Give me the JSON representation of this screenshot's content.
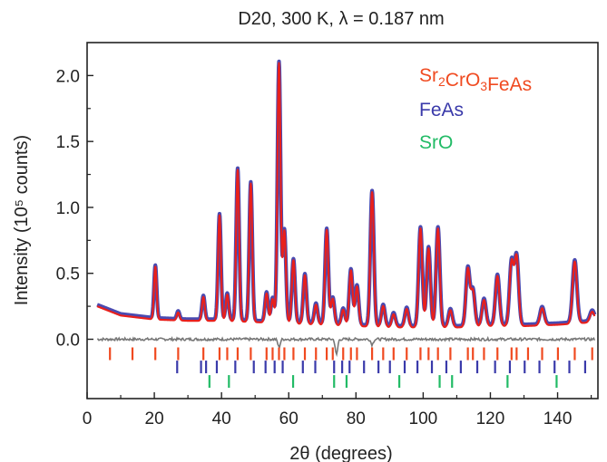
{
  "chart_data": {
    "type": "line",
    "title": "D20, 300 K, λ = 0.187 nm",
    "xlabel": "2θ (degrees)",
    "ylabel": "Intensity (10⁵ counts)",
    "xlim": [
      0,
      152
    ],
    "ylim": [
      -0.45,
      2.25
    ],
    "x_ticks": [
      0,
      20,
      40,
      60,
      80,
      100,
      120,
      140
    ],
    "x_tick_labels": [
      "0",
      "20",
      "40",
      "60",
      "80",
      "100",
      "120",
      "140"
    ],
    "y_ticks": [
      0.0,
      0.5,
      1.0,
      1.5,
      2.0
    ],
    "y_tick_labels": [
      "0.0",
      "0.5",
      "1.0",
      "1.5",
      "2.0"
    ],
    "grid": false,
    "legend_position": "top-right",
    "colors": {
      "observed": "#4a4ab0",
      "calculated": "#e8201c",
      "difference": "#777777",
      "Sr2CrO3FeAs": "#f04a20",
      "FeAs": "#3a3aaa",
      "SrO": "#22bb66"
    },
    "legend": [
      {
        "key": "Sr2CrO3FeAs",
        "base": "Sr",
        "sub1": "2",
        "mid": "CrO",
        "sub2": "3",
        "tail": "FeAs",
        "color": "#f04a20"
      },
      {
        "key": "FeAs",
        "label": "FeAs",
        "color": "#3a3aaa"
      },
      {
        "key": "SrO",
        "label": "SrO",
        "color": "#22bb66"
      }
    ],
    "background": {
      "x": [
        3,
        10,
        20,
        30,
        40,
        50,
        60,
        70,
        80,
        90,
        100,
        110,
        120,
        130,
        140,
        151
      ],
      "y": [
        0.25,
        0.18,
        0.15,
        0.14,
        0.14,
        0.13,
        0.12,
        0.11,
        0.1,
        0.09,
        0.09,
        0.09,
        0.1,
        0.1,
        0.11,
        0.13
      ]
    },
    "peaks": [
      {
        "x": 20.3,
        "h": 0.4
      },
      {
        "x": 27.1,
        "h": 0.06
      },
      {
        "x": 34.6,
        "h": 0.18
      },
      {
        "x": 39.4,
        "h": 0.8
      },
      {
        "x": 41.7,
        "h": 0.2
      },
      {
        "x": 44.8,
        "h": 1.15
      },
      {
        "x": 48.7,
        "h": 1.05
      },
      {
        "x": 53.4,
        "h": 0.22
      },
      {
        "x": 55.2,
        "h": 0.18
      },
      {
        "x": 57.1,
        "h": 1.97
      },
      {
        "x": 58.7,
        "h": 0.7
      },
      {
        "x": 61.4,
        "h": 0.48
      },
      {
        "x": 64.8,
        "h": 0.37
      },
      {
        "x": 68.1,
        "h": 0.15
      },
      {
        "x": 71.3,
        "h": 0.72
      },
      {
        "x": 73.1,
        "h": 0.2
      },
      {
        "x": 76.2,
        "h": 0.12
      },
      {
        "x": 78.5,
        "h": 0.42
      },
      {
        "x": 80.3,
        "h": 0.3
      },
      {
        "x": 84.8,
        "h": 1.02
      },
      {
        "x": 88.1,
        "h": 0.16
      },
      {
        "x": 91.2,
        "h": 0.1
      },
      {
        "x": 95.1,
        "h": 0.14
      },
      {
        "x": 99.2,
        "h": 0.75
      },
      {
        "x": 101.6,
        "h": 0.6
      },
      {
        "x": 104.4,
        "h": 0.75
      },
      {
        "x": 108.1,
        "h": 0.13
      },
      {
        "x": 113.3,
        "h": 0.44
      },
      {
        "x": 114.8,
        "h": 0.27
      },
      {
        "x": 118.1,
        "h": 0.2
      },
      {
        "x": 122.1,
        "h": 0.38
      },
      {
        "x": 126.3,
        "h": 0.48
      },
      {
        "x": 127.8,
        "h": 0.52
      },
      {
        "x": 135.4,
        "h": 0.13
      },
      {
        "x": 145.1,
        "h": 0.47
      },
      {
        "x": 150.3,
        "h": 0.08
      }
    ],
    "difference_x_range": [
      3,
      151
    ],
    "difference_features": [
      {
        "x": 57.1,
        "dy": -0.06
      },
      {
        "x": 74.2,
        "dy": -0.12
      },
      {
        "x": 84.8,
        "dy": -0.04
      }
    ],
    "reflection_ticks": [
      {
        "phase": "Sr2CrO3FeAs",
        "y": -0.11,
        "positions": [
          6.8,
          13.5,
          20.3,
          27.1,
          34.6,
          39.4,
          41.7,
          44.8,
          48.7,
          53.4,
          55.2,
          57.1,
          58.7,
          61.4,
          64.8,
          68.1,
          71.3,
          73.1,
          76.2,
          78.5,
          80.3,
          84.8,
          88.1,
          91.2,
          95.1,
          99.2,
          101.6,
          104.4,
          108.1,
          113.3,
          114.8,
          118.1,
          122.1,
          126.3,
          127.8,
          131.2,
          135.4,
          140.1,
          145.1,
          150.3
        ]
      },
      {
        "phase": "FeAs",
        "y": -0.21,
        "positions": [
          26.8,
          33.9,
          35.4,
          38.6,
          44.1,
          49.6,
          53.1,
          55.8,
          58.2,
          64.2,
          67.9,
          73.5,
          75.9,
          78.1,
          82.4,
          86.7,
          90.1,
          94.5,
          98.3,
          102.6,
          106.9,
          111.2,
          116.1,
          121.4,
          125.8,
          130.2,
          134.6,
          139.1,
          143.5,
          148.2
        ]
      },
      {
        "phase": "SrO",
        "y": -0.32,
        "positions": [
          36.4,
          42.2,
          61.3,
          73.5,
          77.2,
          92.9,
          104.9,
          108.6,
          125.1,
          139.7
        ]
      }
    ]
  }
}
